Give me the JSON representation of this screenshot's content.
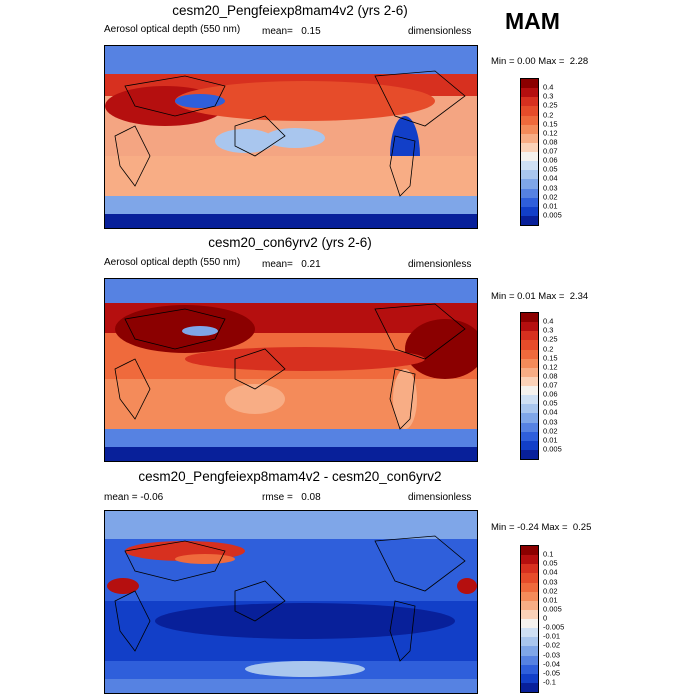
{
  "season": "MAM",
  "panels": [
    {
      "title": "cesm20_Pengfeiexp8mam4v2 (yrs 2-6)",
      "left_label": "Aerosol optical depth (550 nm)",
      "mean_label": "mean=",
      "mean_value": "0.15",
      "units": "dimensionless",
      "min_label": "Min =",
      "min_value": "0.00",
      "max_label": "Max =",
      "max_value": "2.28",
      "type": "abs"
    },
    {
      "title": "cesm20_con6yrv2 (yrs 2-6)",
      "left_label": "Aerosol optical depth (550 nm)",
      "mean_label": "mean=",
      "mean_value": "0.21",
      "units": "dimensionless",
      "min_label": "Min =",
      "min_value": "0.01",
      "max_label": "Max =",
      "max_value": "2.34",
      "type": "abs"
    },
    {
      "title": "cesm20_Pengfeiexp8mam4v2 - cesm20_con6yrv2",
      "left_label": "mean =  -0.06",
      "mean_label": "rmse =",
      "mean_value": "0.08",
      "units": "dimensionless",
      "min_label": "Min =",
      "min_value": "-0.24",
      "max_label": "Max =",
      "max_value": "0.25",
      "type": "diff"
    }
  ],
  "colorbar_abs": {
    "levels": [
      "0.4",
      "0.3",
      "0.25",
      "0.2",
      "0.15",
      "0.12",
      "0.08",
      "0.07",
      "0.06",
      "0.05",
      "0.04",
      "0.03",
      "0.02",
      "0.01",
      "0.005"
    ],
    "colors": [
      "#8b0000",
      "#b50f0f",
      "#d7301f",
      "#e64c2a",
      "#ef6a3c",
      "#f48b5a",
      "#f8ad85",
      "#fbd2b8",
      "#f5f2ee",
      "#cfe0f4",
      "#a9c6ee",
      "#7fa6e8",
      "#5682e2",
      "#2f5fdb",
      "#123fc8",
      "#08209a"
    ]
  },
  "colorbar_diff": {
    "levels": [
      "0.1",
      "0.05",
      "0.04",
      "0.03",
      "0.02",
      "0.01",
      "0.005",
      "0",
      "-0.005",
      "-0.01",
      "-0.02",
      "-0.03",
      "-0.04",
      "-0.05",
      "-0.1"
    ],
    "colors": [
      "#8b0000",
      "#b50f0f",
      "#d7301f",
      "#e64c2a",
      "#ef6a3c",
      "#f48b5a",
      "#f8ad85",
      "#fbd2b8",
      "#f5f2ee",
      "#cfe0f4",
      "#a9c6ee",
      "#7fa6e8",
      "#5682e2",
      "#2f5fdb",
      "#123fc8",
      "#08209a"
    ]
  }
}
